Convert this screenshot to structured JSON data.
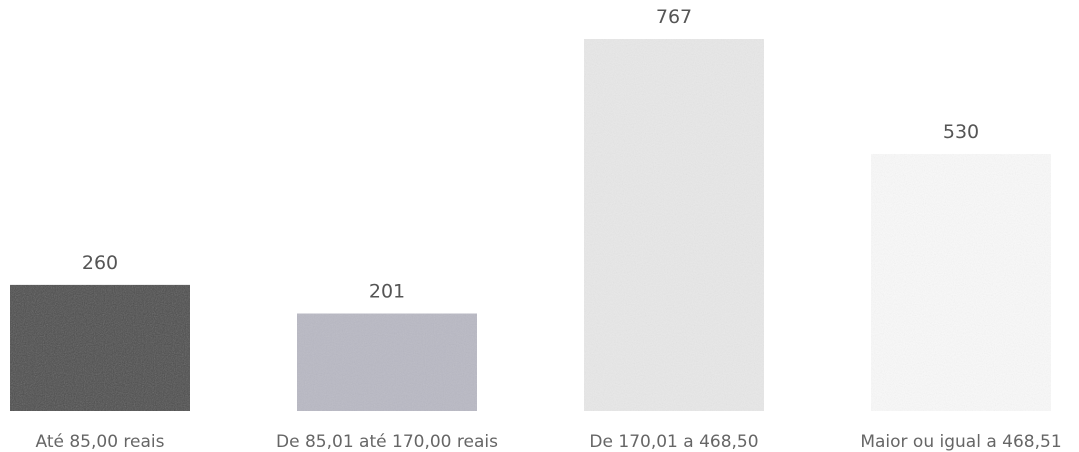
{
  "chart_data": {
    "type": "bar",
    "categories": [
      "Até 85,00 reais",
      "De 85,01 até 170,00 reais",
      "De 170,01 a 468,50",
      "Maior ou igual a 468,51"
    ],
    "values": [
      260,
      201,
      767,
      530
    ],
    "data_labels": [
      "260",
      "201",
      "767",
      "530"
    ],
    "ylim": [
      0,
      800
    ],
    "grid": false,
    "legend": "none",
    "bar_colors": [
      "#4d4d4d",
      "#b9b9c4",
      "#e8e8e8",
      "#f9f9f9"
    ]
  }
}
